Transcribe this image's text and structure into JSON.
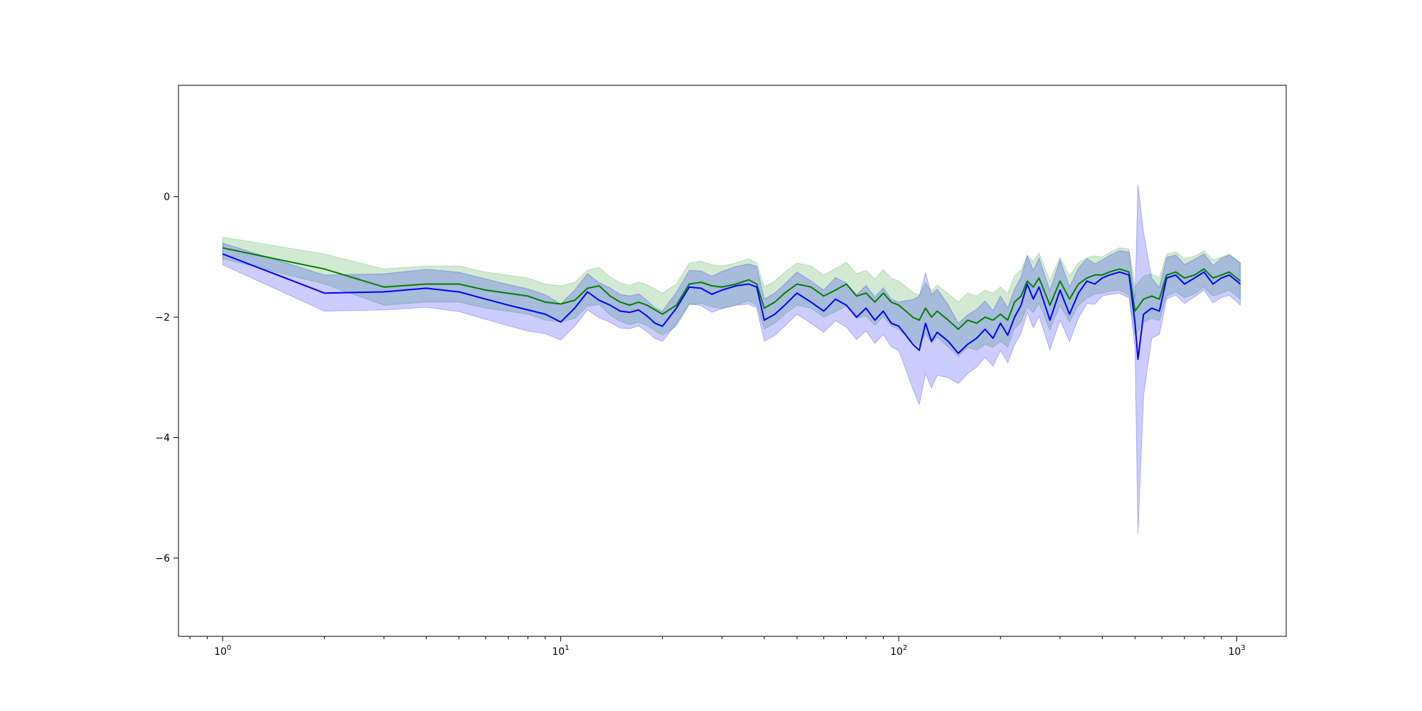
{
  "chart_data": {
    "type": "line",
    "title": "",
    "xlabel": "",
    "ylabel": "",
    "xscale": "log",
    "xlim": [
      0.74,
      1400
    ],
    "ylim": [
      -7.3,
      1.85
    ],
    "grid": false,
    "legend": "none",
    "x_ticks": [
      {
        "base": "10",
        "exp": "0",
        "value": 1
      },
      {
        "base": "10",
        "exp": "1",
        "value": 10
      },
      {
        "base": "10",
        "exp": "2",
        "value": 100
      },
      {
        "base": "10",
        "exp": "3",
        "value": 1000
      }
    ],
    "y_ticks": [
      {
        "label": "0",
        "value": 0
      },
      {
        "label": "−2",
        "value": -2
      },
      {
        "label": "−4",
        "value": -4
      },
      {
        "label": "−6",
        "value": -6
      }
    ],
    "colors": {
      "green": "#008000",
      "blue": "#0000ff",
      "green_band": "#2ca02c",
      "blue_band": "#0000ff"
    },
    "series": [
      {
        "color": "#008000",
        "points": [
          [
            1,
            -0.85
          ],
          [
            2,
            -1.2
          ],
          [
            3,
            -1.5
          ],
          [
            4,
            -1.45
          ],
          [
            5,
            -1.45
          ],
          [
            6,
            -1.55
          ],
          [
            8,
            -1.65
          ],
          [
            9,
            -1.75
          ],
          [
            10,
            -1.78
          ],
          [
            11,
            -1.72
          ],
          [
            12,
            -1.52
          ],
          [
            13,
            -1.48
          ],
          [
            14,
            -1.65
          ],
          [
            15,
            -1.75
          ],
          [
            16,
            -1.8
          ],
          [
            17,
            -1.75
          ],
          [
            18,
            -1.8
          ],
          [
            20,
            -1.95
          ],
          [
            22,
            -1.8
          ],
          [
            24,
            -1.45
          ],
          [
            26,
            -1.42
          ],
          [
            28,
            -1.48
          ],
          [
            30,
            -1.5
          ],
          [
            33,
            -1.45
          ],
          [
            36,
            -1.38
          ],
          [
            38,
            -1.45
          ],
          [
            40,
            -1.85
          ],
          [
            43,
            -1.75
          ],
          [
            46,
            -1.6
          ],
          [
            50,
            -1.45
          ],
          [
            55,
            -1.5
          ],
          [
            60,
            -1.65
          ],
          [
            65,
            -1.55
          ],
          [
            70,
            -1.45
          ],
          [
            75,
            -1.65
          ],
          [
            80,
            -1.6
          ],
          [
            85,
            -1.75
          ],
          [
            90,
            -1.6
          ],
          [
            95,
            -1.75
          ],
          [
            100,
            -1.8
          ],
          [
            105,
            -1.9
          ],
          [
            110,
            -2.0
          ],
          [
            115,
            -2.05
          ],
          [
            120,
            -1.85
          ],
          [
            125,
            -2.0
          ],
          [
            130,
            -1.9
          ],
          [
            140,
            -2.05
          ],
          [
            150,
            -2.2
          ],
          [
            160,
            -2.05
          ],
          [
            170,
            -2.1
          ],
          [
            180,
            -2.0
          ],
          [
            190,
            -2.05
          ],
          [
            200,
            -1.95
          ],
          [
            210,
            -2.05
          ],
          [
            220,
            -1.75
          ],
          [
            230,
            -1.65
          ],
          [
            240,
            -1.4
          ],
          [
            250,
            -1.5
          ],
          [
            260,
            -1.35
          ],
          [
            280,
            -1.8
          ],
          [
            300,
            -1.4
          ],
          [
            320,
            -1.7
          ],
          [
            340,
            -1.45
          ],
          [
            360,
            -1.35
          ],
          [
            380,
            -1.3
          ],
          [
            400,
            -1.3
          ],
          [
            420,
            -1.25
          ],
          [
            450,
            -1.2
          ],
          [
            480,
            -1.25
          ],
          [
            500,
            -1.9
          ],
          [
            530,
            -1.7
          ],
          [
            560,
            -1.65
          ],
          [
            590,
            -1.7
          ],
          [
            620,
            -1.3
          ],
          [
            660,
            -1.25
          ],
          [
            700,
            -1.35
          ],
          [
            750,
            -1.3
          ],
          [
            800,
            -1.2
          ],
          [
            850,
            -1.35
          ],
          [
            900,
            -1.3
          ],
          [
            950,
            -1.25
          ],
          [
            1000,
            -1.35
          ],
          [
            1024,
            -1.4
          ]
        ],
        "band_halfwidth": [
          [
            1,
            0.18
          ],
          [
            2,
            0.25
          ],
          [
            3,
            0.3
          ],
          [
            8,
            0.3
          ],
          [
            10,
            0.3
          ],
          [
            12,
            0.3
          ],
          [
            20,
            0.35
          ],
          [
            40,
            0.35
          ],
          [
            60,
            0.35
          ],
          [
            100,
            0.4
          ],
          [
            150,
            0.45
          ],
          [
            200,
            0.45
          ],
          [
            300,
            0.4
          ],
          [
            400,
            0.3
          ],
          [
            500,
            0.4
          ],
          [
            600,
            0.35
          ],
          [
            800,
            0.3
          ],
          [
            1024,
            0.3
          ]
        ]
      },
      {
        "color": "#0000ff",
        "points": [
          [
            1,
            -0.95
          ],
          [
            2,
            -1.6
          ],
          [
            3,
            -1.58
          ],
          [
            4,
            -1.52
          ],
          [
            5,
            -1.58
          ],
          [
            6,
            -1.7
          ],
          [
            7,
            -1.8
          ],
          [
            8,
            -1.88
          ],
          [
            9,
            -1.95
          ],
          [
            10,
            -2.08
          ],
          [
            11,
            -1.85
          ],
          [
            12,
            -1.58
          ],
          [
            13,
            -1.72
          ],
          [
            14,
            -1.8
          ],
          [
            15,
            -1.9
          ],
          [
            16,
            -1.92
          ],
          [
            17,
            -1.88
          ],
          [
            18,
            -1.98
          ],
          [
            19,
            -2.1
          ],
          [
            20,
            -2.15
          ],
          [
            22,
            -1.85
          ],
          [
            24,
            -1.5
          ],
          [
            26,
            -1.52
          ],
          [
            28,
            -1.62
          ],
          [
            30,
            -1.55
          ],
          [
            33,
            -1.48
          ],
          [
            36,
            -1.45
          ],
          [
            38,
            -1.5
          ],
          [
            40,
            -2.05
          ],
          [
            43,
            -1.95
          ],
          [
            46,
            -1.8
          ],
          [
            50,
            -1.6
          ],
          [
            55,
            -1.75
          ],
          [
            60,
            -1.9
          ],
          [
            65,
            -1.7
          ],
          [
            70,
            -1.8
          ],
          [
            75,
            -2.0
          ],
          [
            80,
            -1.85
          ],
          [
            85,
            -2.05
          ],
          [
            90,
            -1.9
          ],
          [
            95,
            -2.1
          ],
          [
            100,
            -2.15
          ],
          [
            105,
            -2.3
          ],
          [
            110,
            -2.45
          ],
          [
            115,
            -2.55
          ],
          [
            120,
            -2.1
          ],
          [
            125,
            -2.4
          ],
          [
            130,
            -2.25
          ],
          [
            140,
            -2.4
          ],
          [
            150,
            -2.6
          ],
          [
            160,
            -2.45
          ],
          [
            170,
            -2.35
          ],
          [
            180,
            -2.2
          ],
          [
            190,
            -2.35
          ],
          [
            200,
            -2.1
          ],
          [
            210,
            -2.3
          ],
          [
            220,
            -2.0
          ],
          [
            230,
            -1.8
          ],
          [
            240,
            -1.45
          ],
          [
            250,
            -1.7
          ],
          [
            260,
            -1.5
          ],
          [
            280,
            -2.05
          ],
          [
            300,
            -1.55
          ],
          [
            320,
            -1.95
          ],
          [
            340,
            -1.6
          ],
          [
            360,
            -1.4
          ],
          [
            380,
            -1.45
          ],
          [
            400,
            -1.35
          ],
          [
            420,
            -1.3
          ],
          [
            450,
            -1.25
          ],
          [
            480,
            -1.3
          ],
          [
            500,
            -2.1
          ],
          [
            510,
            -2.7
          ],
          [
            530,
            -1.95
          ],
          [
            560,
            -1.85
          ],
          [
            590,
            -1.9
          ],
          [
            620,
            -1.35
          ],
          [
            660,
            -1.3
          ],
          [
            700,
            -1.45
          ],
          [
            750,
            -1.35
          ],
          [
            800,
            -1.25
          ],
          [
            850,
            -1.45
          ],
          [
            900,
            -1.35
          ],
          [
            950,
            -1.3
          ],
          [
            1000,
            -1.4
          ],
          [
            1024,
            -1.45
          ]
        ],
        "band_halfwidth": [
          [
            1,
            0.18
          ],
          [
            2,
            0.3
          ],
          [
            3,
            0.3
          ],
          [
            8,
            0.35
          ],
          [
            10,
            0.3
          ],
          [
            12,
            0.3
          ],
          [
            20,
            0.25
          ],
          [
            40,
            0.35
          ],
          [
            60,
            0.35
          ],
          [
            100,
            0.4
          ],
          [
            115,
            0.9
          ],
          [
            150,
            0.5
          ],
          [
            200,
            0.45
          ],
          [
            300,
            0.5
          ],
          [
            400,
            0.3
          ],
          [
            500,
            0.4
          ],
          [
            505,
            3.5
          ],
          [
            515,
            2.3
          ],
          [
            525,
            1.5
          ],
          [
            560,
            0.5
          ],
          [
            600,
            0.35
          ],
          [
            800,
            0.3
          ],
          [
            1024,
            0.35
          ]
        ]
      }
    ]
  }
}
